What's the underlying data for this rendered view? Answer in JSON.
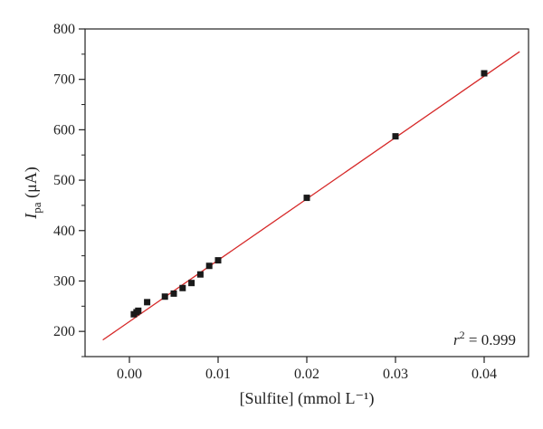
{
  "chart_data": {
    "type": "scatter",
    "title": "",
    "xlabel": "[Sulfite] (mmol L⁻¹)",
    "ylabel_main": "I",
    "ylabel_sub": "pa",
    "ylabel_rest": " (μA)",
    "xlim": [
      -0.005,
      0.045
    ],
    "ylim": [
      150,
      800
    ],
    "xticks": [
      0.0,
      0.01,
      0.02,
      0.03,
      0.04
    ],
    "xtick_labels": [
      "0.00",
      "0.01",
      "0.02",
      "0.03",
      "0.04"
    ],
    "yticks": [
      200,
      300,
      400,
      500,
      600,
      700,
      800
    ],
    "ytick_labels": [
      "200",
      "300",
      "400",
      "500",
      "600",
      "700",
      "800"
    ],
    "grid": false,
    "series": [
      {
        "kind": "points",
        "color": "#1a1a1a",
        "x": [
          0.0005,
          0.0008,
          0.001,
          0.002,
          0.004,
          0.005,
          0.006,
          0.007,
          0.008,
          0.009,
          0.01,
          0.02,
          0.03,
          0.04
        ],
        "y": [
          234,
          238,
          241,
          258,
          269,
          275,
          286,
          296,
          313,
          330,
          341,
          465,
          587,
          712
        ]
      },
      {
        "kind": "fit-line",
        "color": "#d62828",
        "x": [
          -0.003,
          0.044
        ],
        "y": [
          183,
          755
        ]
      }
    ],
    "annotation": {
      "base": "r",
      "sup": "2",
      "rest": " = 0.999"
    }
  }
}
